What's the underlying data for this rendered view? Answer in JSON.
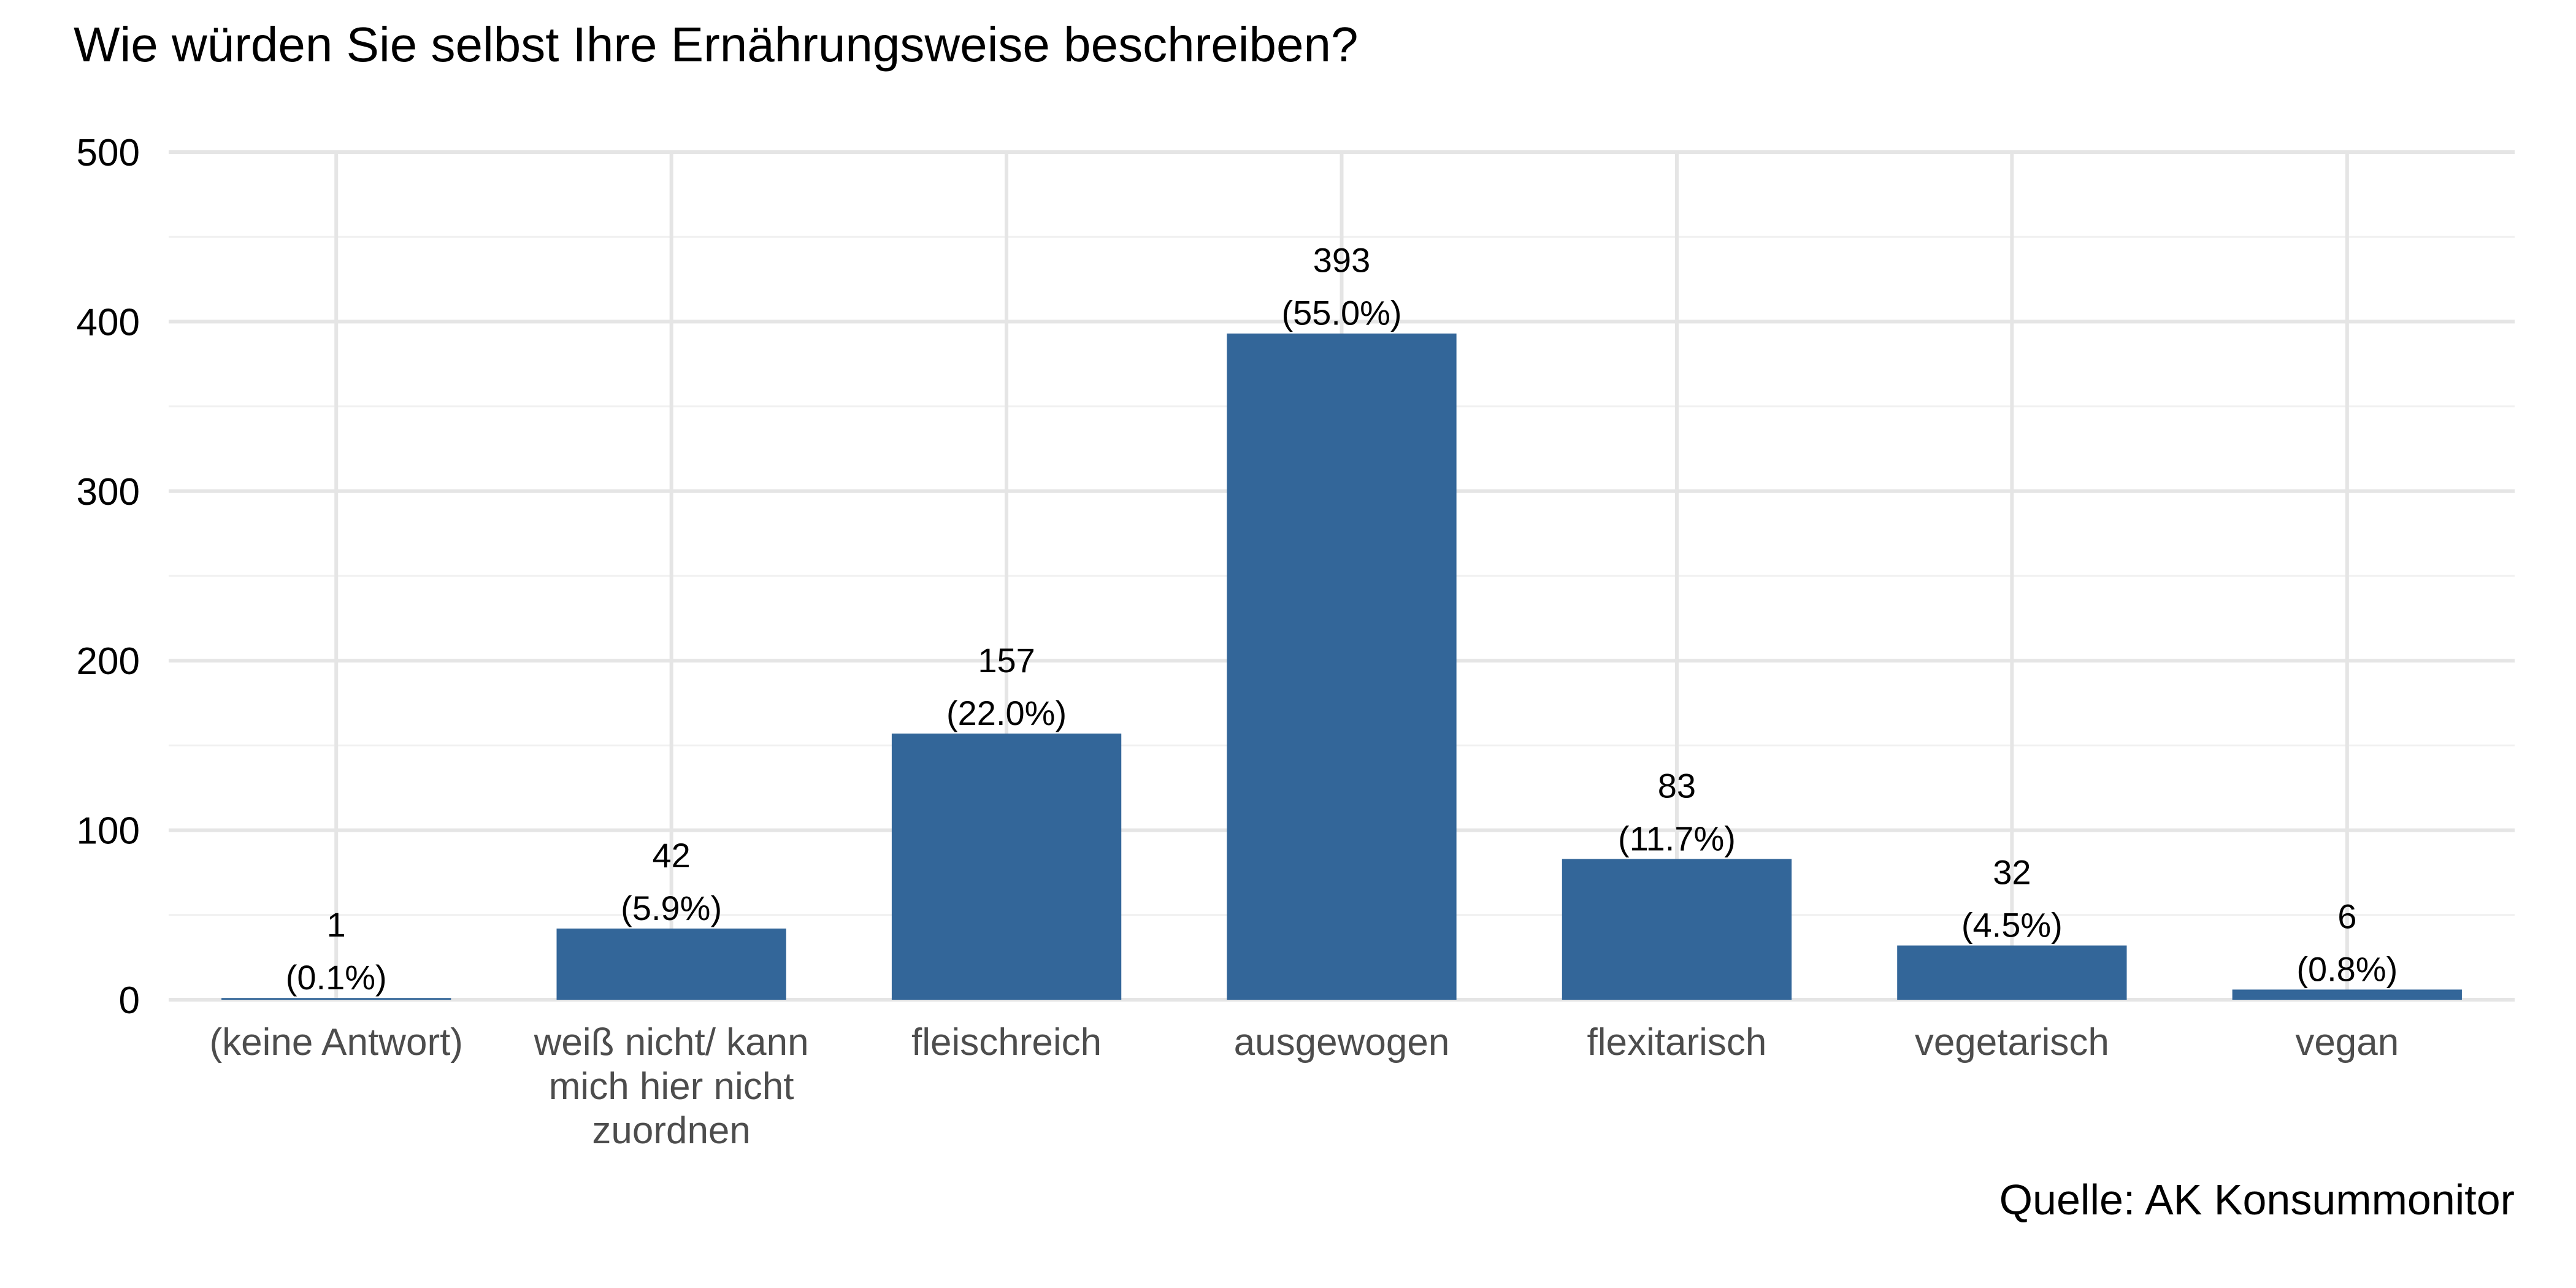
{
  "chart_data": {
    "type": "bar",
    "title": "Wie würden Sie selbst Ihre Ernährungsweise beschreiben?",
    "caption": "Quelle: AK Konsummonitor",
    "xlabel": "",
    "ylabel": "",
    "ylim": [
      0,
      500
    ],
    "yticks": [
      0,
      100,
      200,
      300,
      400,
      500
    ],
    "categories": [
      [
        "(keine Antwort)"
      ],
      [
        "weiß nicht/ kann",
        "mich hier nicht",
        "zuordnen"
      ],
      [
        "fleischreich"
      ],
      [
        "ausgewogen"
      ],
      [
        "flexitarisch"
      ],
      [
        "vegetarisch"
      ],
      [
        "vegan"
      ]
    ],
    "values": [
      1,
      42,
      157,
      393,
      83,
      32,
      6
    ],
    "percent_labels": [
      "(0.1%)",
      "(5.9%)",
      "(22.0%)",
      "(55.0%)",
      "(11.7%)",
      "(4.5%)",
      "(0.8%)"
    ],
    "bar_color": "#336699",
    "grid": true,
    "legend": "none"
  }
}
